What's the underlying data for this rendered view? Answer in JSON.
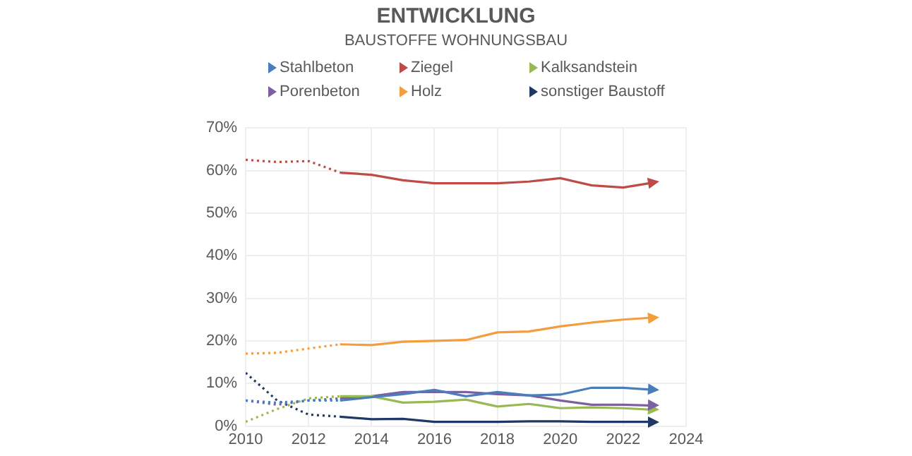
{
  "chart_data": {
    "type": "line",
    "title": "ENTWICKLUNG",
    "subtitle": "BAUSTOFFE WOHNUNGSBAU",
    "xlim": [
      2010,
      2024
    ],
    "xticks": [
      2010,
      2012,
      2014,
      2016,
      2018,
      2020,
      2022,
      2024
    ],
    "ylim": [
      0,
      70
    ],
    "yticks": [
      {
        "value": 0,
        "label": "0%"
      },
      {
        "value": 10,
        "label": "10%"
      },
      {
        "value": 20,
        "label": "20%"
      },
      {
        "value": 30,
        "label": "30%"
      },
      {
        "value": 40,
        "label": "40%"
      },
      {
        "value": 50,
        "label": "50%"
      },
      {
        "value": 60,
        "label": "60%"
      },
      {
        "value": 70,
        "label": "70%"
      }
    ],
    "grid": true,
    "legend": "top",
    "series": [
      {
        "name": "Stahlbeton",
        "color": "#4a7ebb",
        "line_style": "solid",
        "x": [
          2013,
          2014,
          2015,
          2016,
          2017,
          2018,
          2019,
          2020,
          2021,
          2022,
          2023
        ],
        "values": [
          6,
          6.8,
          7.5,
          8.5,
          7,
          8,
          7.2,
          7.4,
          9,
          9,
          8.5
        ]
      },
      {
        "name": "Ziegel",
        "color": "#be4b48",
        "line_style": "solid",
        "x": [
          2013,
          2014,
          2015,
          2016,
          2017,
          2018,
          2019,
          2020,
          2021,
          2022,
          2023
        ],
        "values": [
          59.5,
          59,
          57.7,
          57,
          57,
          57,
          57.4,
          58.2,
          56.5,
          56,
          57.2
        ]
      },
      {
        "name": "Kalksandstein",
        "color": "#98b954",
        "line_style": "solid",
        "x": [
          2013,
          2014,
          2015,
          2016,
          2017,
          2018,
          2019,
          2020,
          2021,
          2022,
          2023
        ],
        "values": [
          7,
          7,
          5.5,
          5.7,
          6.2,
          4.6,
          5.2,
          4.2,
          4.4,
          4.2,
          3.8
        ]
      },
      {
        "name": "Porenbeton",
        "color": "#7d60a0",
        "line_style": "solid",
        "x": [
          2013,
          2014,
          2015,
          2016,
          2017,
          2018,
          2019,
          2020,
          2021,
          2022,
          2023
        ],
        "values": [
          6.5,
          7,
          8,
          8,
          8,
          7.5,
          7.2,
          6,
          5,
          5,
          4.8
        ]
      },
      {
        "name": "Holz",
        "color": "#f59d3d",
        "line_style": "solid",
        "x": [
          2013,
          2014,
          2015,
          2016,
          2017,
          2018,
          2019,
          2020,
          2021,
          2022,
          2023
        ],
        "values": [
          19.2,
          19,
          19.8,
          20,
          20.2,
          22,
          22.2,
          23.4,
          24.3,
          25,
          25.5
        ]
      },
      {
        "name": "sonstiger Baustoff",
        "color": "#1f3864",
        "line_style": "solid",
        "x": [
          2013,
          2014,
          2015,
          2016,
          2017,
          2018,
          2019,
          2020,
          2021,
          2022,
          2023
        ],
        "values": [
          2.2,
          1.6,
          1.7,
          1,
          1,
          1,
          1.1,
          1.1,
          1,
          1,
          1
        ]
      },
      {
        "color": "#4a7ebb",
        "line_style": "dotted",
        "marker": "none",
        "x": [
          2010,
          2011,
          2012,
          2013
        ],
        "values": [
          6,
          5.5,
          6,
          6
        ]
      },
      {
        "color": "#be4b48",
        "line_style": "dotted",
        "marker": "none",
        "x": [
          2010,
          2011,
          2012,
          2013
        ],
        "values": [
          62.5,
          62,
          62.2,
          59.5
        ]
      },
      {
        "color": "#98b954",
        "line_style": "dotted",
        "marker": "none",
        "x": [
          2010,
          2011,
          2012,
          2013
        ],
        "values": [
          1,
          4,
          6.5,
          7
        ]
      },
      {
        "color": "#7d60a0",
        "line_style": "dotted",
        "marker": "none",
        "x": [
          2010,
          2011,
          2012,
          2013
        ],
        "values": [
          6,
          5,
          6,
          6.5
        ]
      },
      {
        "color": "#f59d3d",
        "line_style": "dotted",
        "marker": "none",
        "x": [
          2010,
          2011,
          2012,
          2013
        ],
        "values": [
          17,
          17.2,
          18.2,
          19.2
        ]
      },
      {
        "color": "#1f3864",
        "line_style": "dotted",
        "marker": "none",
        "x": [
          2010,
          2011,
          2012,
          2013
        ],
        "values": [
          12.5,
          6,
          2.7,
          2.2
        ]
      }
    ]
  }
}
